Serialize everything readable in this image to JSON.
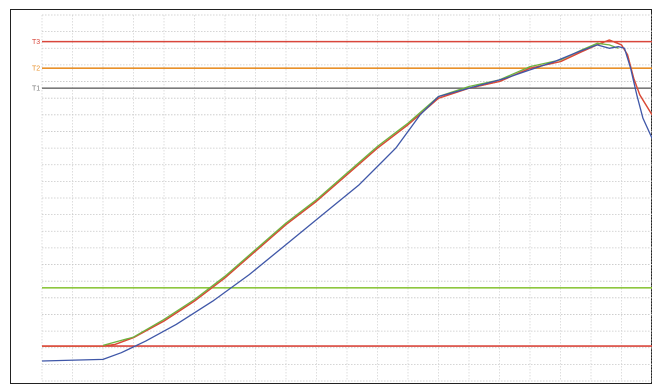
{
  "colors": {
    "grid_major": "#c8c8c8",
    "grid_minor": "#d6d6d6",
    "series_orange": "#e8902a",
    "series_red": "#d9463b",
    "series_green": "#6db33f",
    "series_blue": "#3f57a8",
    "ref_T1": "#9a9a9a"
  },
  "chart_data": {
    "type": "line",
    "title": "",
    "xlabel": "",
    "ylabel": "",
    "xlim": [
      0,
      100
    ],
    "ylim": [
      0,
      110
    ],
    "grid": true,
    "y_ticks": [
      5,
      15,
      25,
      35,
      45,
      55,
      65,
      75,
      85,
      95,
      105
    ],
    "y_tick_labels": [
      "",
      "",
      "",
      "",
      "",
      "",
      "",
      "",
      "",
      "",
      ""
    ],
    "reference_lines": [
      {
        "label": "T3",
        "value": 102,
        "color": "#d9463b"
      },
      {
        "label": "T2",
        "value": 94,
        "color": "#e8902a"
      },
      {
        "label": "T1",
        "value": 88,
        "color": "#7a7a7a"
      },
      {
        "label": "",
        "value": 28,
        "color": "#8dc63f"
      },
      {
        "label": "",
        "value": 10.5,
        "color": "#d9463b"
      }
    ],
    "series": [
      {
        "color": "#e8902a",
        "x": [
          0,
          10,
          12,
          15,
          20,
          25,
          30,
          35,
          40,
          45,
          50,
          55,
          60,
          65,
          70,
          75,
          80,
          85,
          88.5,
          91,
          93,
          95,
          96,
          97,
          98,
          100
        ],
        "y": [
          10.5,
          10.5,
          11,
          13,
          18,
          24,
          31,
          39,
          47,
          54,
          62,
          70,
          77,
          85,
          88,
          90,
          94,
          96,
          99,
          101,
          102.5,
          101,
          98,
          91,
          86,
          80
        ]
      },
      {
        "color": "#d9463b",
        "x": [
          0,
          10,
          12,
          15,
          20,
          25,
          30,
          35,
          40,
          45,
          50,
          55,
          60,
          65,
          70,
          75,
          80,
          85,
          88.5,
          91,
          93,
          95,
          96,
          97,
          98,
          100
        ],
        "y": [
          10.5,
          10.5,
          11,
          13,
          18,
          24,
          31,
          39,
          47,
          54,
          62,
          70,
          77,
          85,
          88,
          90,
          94,
          96,
          99,
          101,
          102.5,
          101,
          98,
          91,
          86,
          80
        ]
      },
      {
        "color": "#6db33f",
        "x": [
          10,
          15,
          20,
          25,
          30,
          35,
          40,
          45,
          50,
          55,
          60,
          65,
          70,
          75,
          80,
          85,
          88.5,
          91,
          93,
          94.5
        ],
        "y": [
          10.7,
          13.2,
          18.5,
          24.5,
          31.5,
          39.5,
          47.5,
          54.5,
          62.5,
          70.5,
          77.5,
          85.5,
          88.5,
          90.5,
          94.5,
          96.5,
          99.5,
          101.5,
          101,
          100
        ]
      },
      {
        "color": "#3f57a8",
        "x": [
          0,
          10,
          13,
          17,
          22,
          28,
          34,
          40,
          46,
          52,
          58,
          62,
          65,
          68,
          72,
          76,
          80,
          84,
          88,
          91,
          93,
          94.5,
          95.5,
          96.5,
          97.5,
          98.5,
          100
        ],
        "y": [
          6,
          6.5,
          8.5,
          12,
          17,
          24,
          32,
          41,
          50,
          59,
          70,
          80,
          85.5,
          87,
          89,
          91,
          93.5,
          96,
          99,
          101,
          100,
          100.5,
          100,
          94,
          86,
          79,
          73
        ]
      }
    ]
  }
}
